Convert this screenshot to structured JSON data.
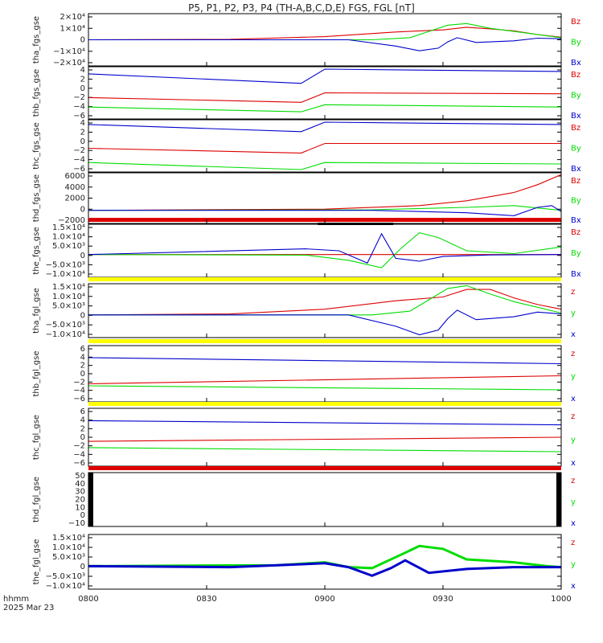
{
  "title": "P5, P1, P2, P3, P4 (TH-A,B,C,D,E) FGS, FGL [nT]",
  "xaxis": {
    "name_line1": "hhmm",
    "name_line2": "2025 Mar 23",
    "tick_labels": [
      "0800",
      "0830",
      "0900",
      "0930",
      "1000"
    ]
  },
  "colors": {
    "red": "#dd0000",
    "green": "#00dd00",
    "blue": "#0000cc",
    "yellow": "#ffff00",
    "black": "#000000"
  },
  "chart_data": [
    {
      "type": "line",
      "panel": "tha_fgs_gse",
      "ylabel": "tha_fgs_gse",
      "yticks": [
        "2×10⁴",
        "1×10⁴",
        "0",
        "−1×10⁴",
        "−2×10⁴"
      ],
      "ylim": [
        -25000,
        25000
      ],
      "series": [
        {
          "name": "Bz",
          "color": "red",
          "x": [
            0,
            0.3,
            0.5,
            0.65,
            0.75,
            0.8,
            0.85,
            0.9,
            0.95,
            1
          ],
          "y": [
            0,
            500,
            3000,
            7500,
            9500,
            12000,
            10500,
            8500,
            5000,
            2500
          ]
        },
        {
          "name": "By",
          "color": "green",
          "x": [
            0,
            0.6,
            0.68,
            0.72,
            0.76,
            0.8,
            0.85,
            0.9,
            1
          ],
          "y": [
            0,
            0,
            2000,
            8000,
            14000,
            15500,
            11000,
            8000,
            2000
          ]
        },
        {
          "name": "Bx",
          "color": "blue",
          "x": [
            0,
            0.55,
            0.65,
            0.7,
            0.74,
            0.76,
            0.78,
            0.82,
            0.9,
            0.95,
            1
          ],
          "y": [
            0,
            0,
            -6000,
            -10500,
            -8000,
            -2000,
            2000,
            -2500,
            -1000,
            1500,
            1000
          ]
        }
      ]
    },
    {
      "type": "line",
      "panel": "thb_fgs_gse",
      "ylabel": "thb_fgs_gse",
      "yticks": [
        "4",
        "2",
        "0",
        "−2",
        "−4",
        "−6"
      ],
      "ylim": [
        -6.5,
        4.5
      ],
      "series": [
        {
          "name": "Bz",
          "color": "red",
          "x": [
            0,
            0.45,
            0.5,
            1
          ],
          "y": [
            -2,
            -3,
            -1,
            -1.2
          ]
        },
        {
          "name": "By",
          "color": "green",
          "x": [
            0,
            0.45,
            0.5,
            1
          ],
          "y": [
            -4,
            -5,
            -3.5,
            -4
          ]
        },
        {
          "name": "Bx",
          "color": "blue",
          "x": [
            0,
            0.45,
            0.5,
            1
          ],
          "y": [
            3,
            1,
            4,
            3.5
          ]
        }
      ]
    },
    {
      "type": "line",
      "panel": "thc_fgs_gse",
      "ylabel": "thc_fgs_gse",
      "yticks": [
        "4",
        "2",
        "0",
        "−2",
        "−4",
        "−6"
      ],
      "ylim": [
        -6.5,
        4.5
      ],
      "series": [
        {
          "name": "Bz",
          "color": "red",
          "x": [
            0,
            0.45,
            0.5,
            1
          ],
          "y": [
            -1.5,
            -2.5,
            -0.5,
            -0.5
          ]
        },
        {
          "name": "By",
          "color": "green",
          "x": [
            0,
            0.45,
            0.5,
            1
          ],
          "y": [
            -4.5,
            -6,
            -4.5,
            -4.8
          ]
        },
        {
          "name": "Bx",
          "color": "blue",
          "x": [
            0,
            0.45,
            0.5,
            1
          ],
          "y": [
            3.5,
            2,
            4,
            3.5
          ]
        }
      ]
    },
    {
      "type": "line",
      "panel": "thd_fgs_gse",
      "ylabel": "thd_fgs_gse",
      "yticks": [
        "6000",
        "4000",
        "2000",
        "0",
        "−2000"
      ],
      "ylim": [
        -2200,
        6300
      ],
      "series": [
        {
          "name": "Bz",
          "color": "red",
          "x": [
            0,
            0.5,
            0.7,
            0.8,
            0.9,
            0.95,
            1
          ],
          "y": [
            0,
            200,
            800,
            1600,
            3000,
            4300,
            6000
          ]
        },
        {
          "name": "By",
          "color": "green",
          "x": [
            0,
            0.6,
            0.8,
            0.9,
            1
          ],
          "y": [
            0,
            100,
            500,
            800,
            0
          ]
        },
        {
          "name": "Bx",
          "color": "blue",
          "x": [
            0,
            0.6,
            0.8,
            0.9,
            0.95,
            0.98,
            1
          ],
          "y": [
            0,
            0,
            -400,
            -900,
            500,
            800,
            -200
          ]
        }
      ]
    },
    {
      "type": "line",
      "panel": "the_fgs_gse",
      "ylabel": "the_fgs_gse",
      "yticks": [
        "1.5×10⁴",
        "1.0×10⁴",
        "5.0×10³",
        "0",
        "−5.0×10³",
        "−1.0×10⁴"
      ],
      "ylim": [
        -12000,
        16000
      ],
      "series": [
        {
          "name": "Bz",
          "color": "red",
          "x": [
            0,
            1
          ],
          "y": [
            0,
            0
          ]
        },
        {
          "name": "By",
          "color": "green",
          "x": [
            0,
            0.46,
            0.55,
            0.62,
            0.66,
            0.7,
            0.74,
            0.8,
            0.9,
            1
          ],
          "y": [
            0,
            -300,
            -3000,
            -7000,
            3000,
            11500,
            9000,
            2000,
            500,
            4000
          ]
        },
        {
          "name": "Bx",
          "color": "blue",
          "x": [
            0,
            0.46,
            0.53,
            0.59,
            0.62,
            0.65,
            0.7,
            0.75,
            0.85,
            1
          ],
          "y": [
            0,
            3000,
            2000,
            -4500,
            11000,
            -2000,
            -3500,
            -1000,
            -200,
            0
          ]
        }
      ],
      "bars": [
        {
          "color": "red",
          "x": [
            0,
            1
          ]
        },
        {
          "color": "black",
          "x": [
            0.485,
            0.645
          ]
        }
      ]
    },
    {
      "type": "line",
      "panel": "tha_fgl_gse",
      "ylabel": "tha_fgl_gse",
      "yticks": [
        "1.5×10⁴",
        "1.0×10⁴",
        "5.0×10³",
        "0",
        "−5.0×10³",
        "−1.0×10⁴"
      ],
      "ylim": [
        -12000,
        16500
      ],
      "series": [
        {
          "name": "z",
          "color": "red",
          "x": [
            0,
            0.3,
            0.5,
            0.65,
            0.75,
            0.8,
            0.85,
            0.9,
            0.95,
            1
          ],
          "y": [
            0,
            500,
            3000,
            7500,
            9500,
            13500,
            13500,
            9000,
            5500,
            3000
          ]
        },
        {
          "name": "y",
          "color": "green",
          "x": [
            0,
            0.6,
            0.68,
            0.72,
            0.76,
            0.8,
            0.85,
            0.9,
            1
          ],
          "y": [
            0,
            0,
            2000,
            8000,
            14000,
            15500,
            11000,
            7000,
            1000
          ]
        },
        {
          "name": "x",
          "color": "blue",
          "x": [
            0,
            0.55,
            0.65,
            0.7,
            0.74,
            0.76,
            0.78,
            0.82,
            0.9,
            0.95,
            1
          ],
          "y": [
            0,
            0,
            -6000,
            -10500,
            -8000,
            -2000,
            2500,
            -2500,
            -1000,
            1500,
            500
          ]
        }
      ],
      "bars": [
        {
          "color": "yellow",
          "x": [
            0,
            1
          ]
        }
      ]
    },
    {
      "type": "line",
      "panel": "thb_fgl_gse",
      "ylabel": "thb_fgl_gse",
      "yticks": [
        "6",
        "4",
        "2",
        "0",
        "−2",
        "−4",
        "−6"
      ],
      "ylim": [
        -7,
        7
      ],
      "series": [
        {
          "name": "z",
          "color": "red",
          "x": [
            0,
            1
          ],
          "y": [
            -2.5,
            -0.5
          ]
        },
        {
          "name": "y",
          "color": "green",
          "x": [
            0,
            1
          ],
          "y": [
            -3,
            -4
          ]
        },
        {
          "name": "x",
          "color": "blue",
          "x": [
            0,
            1
          ],
          "y": [
            4,
            2.5
          ]
        }
      ],
      "bars": [
        {
          "color": "yellow",
          "x": [
            0,
            1
          ]
        }
      ]
    },
    {
      "type": "line",
      "panel": "thc_fgl_gse",
      "ylabel": "thc_fgl_gse",
      "yticks": [
        "6",
        "4",
        "2",
        "0",
        "−2",
        "−4",
        "−6"
      ],
      "ylim": [
        -7,
        7
      ],
      "series": [
        {
          "name": "z",
          "color": "red",
          "x": [
            0,
            1
          ],
          "y": [
            -1,
            0
          ]
        },
        {
          "name": "y",
          "color": "green",
          "x": [
            0,
            1
          ],
          "y": [
            -2.5,
            -3.5
          ]
        },
        {
          "name": "x",
          "color": "blue",
          "x": [
            0,
            1
          ],
          "y": [
            4,
            3
          ]
        }
      ],
      "bars": [
        {
          "color": "yellow",
          "x": [
            0,
            1
          ]
        }
      ]
    },
    {
      "type": "line",
      "panel": "thd_fgl_gse",
      "ylabel": "thd_fgl_gse",
      "yticks": [
        "50",
        "40",
        "30",
        "20",
        "10",
        "0",
        "−10"
      ],
      "ylim": [
        -13,
        53
      ],
      "series": [
        {
          "name": "z",
          "color": "red",
          "x": [],
          "y": []
        },
        {
          "name": "y",
          "color": "green",
          "x": [],
          "y": []
        },
        {
          "name": "x",
          "color": "blue",
          "x": [],
          "y": []
        }
      ],
      "bars": [
        {
          "color": "red",
          "x": [
            0,
            1
          ]
        }
      ]
    },
    {
      "type": "line",
      "panel": "the_fgl_gse",
      "ylabel": "the_fgl_gse",
      "yticks": [
        "1.5×10⁴",
        "1.0×10⁴",
        "5.0×10³",
        "0",
        "−5.0×10³",
        "−1.0×10⁴"
      ],
      "ylim": [
        -12000,
        16500
      ],
      "series": [
        {
          "name": "z",
          "color": "red",
          "x": [],
          "y": []
        },
        {
          "name": "y",
          "color": "green",
          "x": [
            0,
            0.4,
            0.5,
            0.55,
            0.6,
            0.67,
            0.7,
            0.75,
            0.8,
            0.9,
            0.97,
            1
          ],
          "y": [
            0,
            500,
            2000,
            -500,
            -1000,
            7000,
            10500,
            9000,
            3500,
            2000,
            0,
            -500
          ]
        },
        {
          "name": "x",
          "color": "blue",
          "x": [
            0,
            0.3,
            0.5,
            0.55,
            0.6,
            0.64,
            0.67,
            0.72,
            0.8,
            0.9,
            1
          ],
          "y": [
            0,
            -500,
            1500,
            -500,
            -5000,
            -1000,
            3000,
            -3500,
            -1500,
            -500,
            -500
          ]
        }
      ]
    }
  ]
}
